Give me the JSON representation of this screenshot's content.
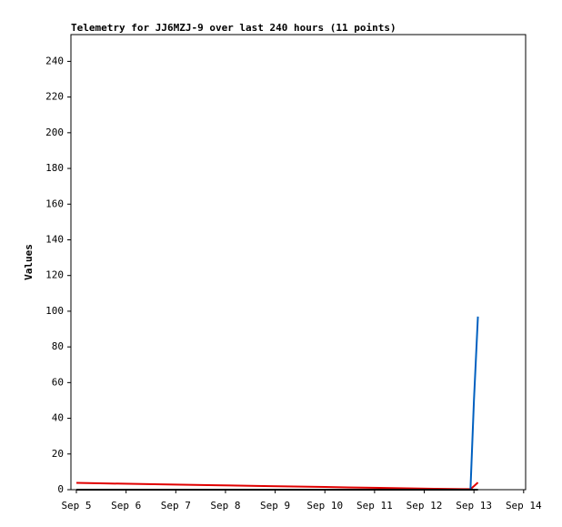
{
  "chart_data": {
    "type": "line",
    "title": "Telemetry for JJ6MZJ-9 over last 240 hours (11 points)",
    "y_label": "Values",
    "x": [
      5.0,
      5.6,
      6.7,
      7.8,
      8.9,
      10.0,
      11.1,
      12.2,
      12.93,
      13.0,
      13.08
    ],
    "series": [
      {
        "color": "#e00000",
        "values": [
          3.8,
          3.5,
          3.0,
          2.5,
          2.0,
          1.5,
          1.0,
          0.5,
          0.3,
          2.0,
          4.0
        ]
      },
      {
        "color": "#0060c0",
        "values": [
          0,
          0,
          0,
          0,
          0,
          0,
          0,
          0,
          0,
          50,
          97
        ]
      },
      {
        "color": "#000000",
        "values": [
          0,
          0,
          0,
          0,
          0,
          0,
          0,
          0,
          0,
          0,
          0
        ]
      }
    ],
    "xlim": [
      4.89,
      14.04
    ],
    "xticks": [
      {
        "value": 5,
        "label": "Sep 5"
      },
      {
        "value": 6,
        "label": "Sep 6"
      },
      {
        "value": 7,
        "label": "Sep 7"
      },
      {
        "value": 8,
        "label": "Sep 8"
      },
      {
        "value": 9,
        "label": "Sep 9"
      },
      {
        "value": 10,
        "label": "Sep 10"
      },
      {
        "value": 11,
        "label": "Sep 11"
      },
      {
        "value": 12,
        "label": "Sep 12"
      },
      {
        "value": 13,
        "label": "Sep 13"
      },
      {
        "value": 14,
        "label": "Sep 14"
      }
    ],
    "ylim": [
      0,
      255
    ],
    "yticks": [
      0,
      20,
      40,
      60,
      80,
      100,
      120,
      140,
      160,
      180,
      200,
      220,
      240
    ],
    "grid": false
  }
}
